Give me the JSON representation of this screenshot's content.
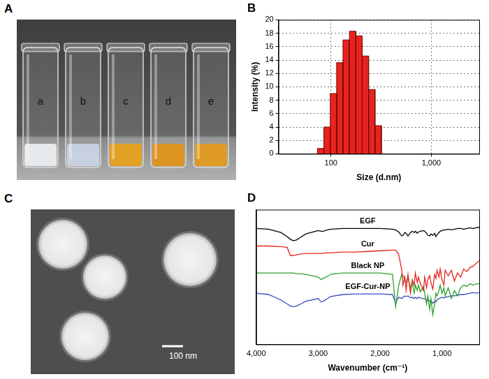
{
  "photo_a": {
    "panel": "A",
    "vial_labels": [
      "a",
      "b",
      "c",
      "d",
      "e"
    ]
  },
  "photo_c": {
    "panel": "C",
    "scale_bar": "100 nm"
  },
  "chart_data": [
    {
      "type": "histogram",
      "title": "B",
      "bins": [
        73.3,
        84.9,
        98.3,
        113.8,
        131.8,
        152.7,
        176.8,
        204.7,
        237.1,
        274.5,
        317.9
      ],
      "values": [
        0.8,
        4.0,
        9.0,
        13.6,
        17.0,
        18.3,
        17.6,
        14.6,
        9.6,
        4.2
      ],
      "color": "#e8231f",
      "xlabel": "Size (d.nm)",
      "ylabel": "Intensity (%)",
      "log": "x",
      "xlim": [
        30,
        3000
      ],
      "xticks": [
        100,
        {
          "value": 1000,
          "label": "1,000"
        }
      ],
      "ylim": [
        0,
        20
      ],
      "yticks": [
        0,
        2,
        4,
        6,
        8,
        10,
        12,
        14,
        16,
        18,
        20
      ],
      "grid": true
    },
    {
      "type": "line",
      "title": "D",
      "xlabel": "Wavenumber (cm⁻¹)",
      "x": [
        4000,
        3800,
        3600,
        3500,
        3450,
        3400,
        3350,
        3300,
        3200,
        3000,
        2950,
        2920,
        2850,
        2800,
        2600,
        2400,
        2200,
        2000,
        1800,
        1750,
        1700,
        1650,
        1630,
        1600,
        1580,
        1550,
        1510,
        1480,
        1450,
        1430,
        1400,
        1380,
        1350,
        1300,
        1280,
        1250,
        1230,
        1200,
        1180,
        1150,
        1120,
        1100,
        1080,
        1050,
        1030,
        1000,
        970,
        950,
        900,
        850,
        800,
        750,
        700,
        650,
        600,
        550,
        500,
        450,
        400
      ],
      "series": [
        {
          "name": "EGF",
          "color": "#000000",
          "values": [
            86,
            85.5,
            83,
            80,
            78,
            77,
            77.5,
            79,
            82,
            84.5,
            84,
            84,
            85,
            85.5,
            86,
            86,
            86,
            86,
            85.5,
            85,
            83.5,
            80.5,
            81,
            83,
            82.5,
            80.5,
            83,
            84,
            83,
            84,
            82.5,
            83.5,
            84,
            84.5,
            84,
            82.5,
            81,
            80.5,
            82,
            81,
            82.5,
            80,
            81.5,
            83,
            84,
            84.5,
            85,
            85,
            85.5,
            85,
            85.5,
            86,
            86,
            85.5,
            86,
            86.5,
            86,
            86.5,
            87
          ]
        },
        {
          "name": "Cur",
          "color": "#e8231d",
          "values": [
            73,
            73,
            72.5,
            72,
            66,
            66,
            66.5,
            67,
            67.5,
            67.5,
            67.5,
            67.5,
            68,
            68,
            68.5,
            68.5,
            69,
            69.5,
            70,
            70,
            67,
            55,
            44,
            50,
            40,
            52,
            38,
            48,
            44,
            53,
            46,
            50,
            45,
            40,
            50,
            42,
            48,
            51,
            46,
            41,
            52,
            49,
            55,
            50,
            56,
            48,
            44,
            55,
            51,
            55,
            47,
            53,
            50,
            56,
            54,
            57,
            58,
            60,
            62
          ]
        },
        {
          "name": "Black NP",
          "color": "#2ca02c",
          "values": [
            53,
            53,
            53,
            53,
            53,
            53,
            52.5,
            52.5,
            52,
            50,
            48,
            49,
            50.5,
            52,
            53,
            53,
            53,
            53,
            52,
            28,
            44,
            52,
            51,
            48,
            46,
            50,
            42,
            46,
            38,
            44,
            40,
            44,
            39,
            43,
            38,
            30,
            36,
            26,
            34,
            22,
            30,
            38,
            36,
            40,
            44,
            38,
            42,
            36,
            42,
            34,
            40,
            36,
            42,
            44,
            43,
            45,
            44,
            45,
            45
          ]
        },
        {
          "name": "EGF-Cur-NP",
          "color": "#3b4cc0",
          "values": [
            38,
            37,
            33,
            30,
            28.5,
            28,
            28.5,
            29.5,
            32,
            34,
            31.5,
            32,
            34,
            35.5,
            37,
            37.5,
            37.5,
            37.5,
            37,
            31,
            35,
            34,
            35,
            36,
            35.5,
            36,
            34.5,
            35,
            34,
            35,
            34,
            35,
            34.5,
            34,
            34,
            32.5,
            33.5,
            32,
            32.5,
            30.5,
            32,
            31.5,
            33,
            34,
            34.5,
            35,
            34.5,
            35,
            35.5,
            36,
            36,
            36.5,
            37,
            37,
            37.5,
            38,
            38.5,
            38,
            38.5
          ]
        }
      ],
      "xlim": [
        4000,
        400
      ],
      "xticks": [
        {
          "value": 4000,
          "label": "4,000"
        },
        {
          "value": 3000,
          "label": "3,000"
        },
        {
          "value": 2000,
          "label": "2,000"
        },
        {
          "value": 1000,
          "label": "1,000"
        }
      ],
      "ylim": [
        0,
        100
      ],
      "tick_labels": "x",
      "grid": false
    }
  ]
}
